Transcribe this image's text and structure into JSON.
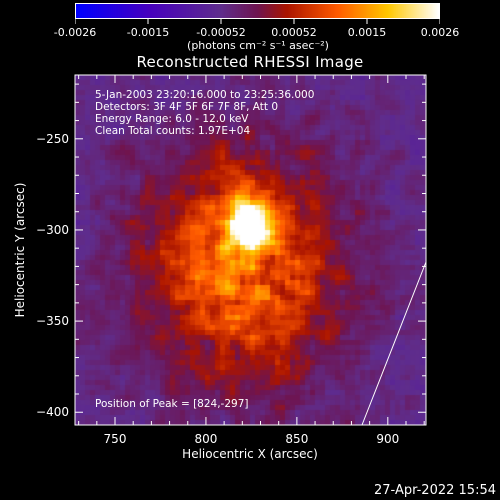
{
  "colorbar": {
    "tick_labels": [
      "-0.0026",
      "-0.0015",
      "-0.00052",
      "0.00052",
      "0.0015",
      "0.0026"
    ],
    "units_label": "(photons cm⁻² s⁻¹ asec⁻²)",
    "colors": [
      "#0000ff",
      "#4b00b0",
      "#5e2a8c",
      "#a81800",
      "#ff6000",
      "#ffd000",
      "#ffffff"
    ]
  },
  "title": "Reconstructed RHESSI Image",
  "info_lines": [
    "5-Jan-2003 23:20:16.000 to 23:25:36.000",
    "Detectors: 3F 4F 5F 6F 7F 8F, Att 0",
    "Energy Range: 6.0 - 12.0 keV",
    "Clean     Total counts: 1.97E+04"
  ],
  "peak_label": "Position of Peak = [824,-297]",
  "axes": {
    "xlabel": "Heliocentric X (arcsec)",
    "ylabel": "Heliocentric Y (arcsec)",
    "xlim": [
      728,
      921
    ],
    "ylim": [
      -407,
      -215
    ],
    "xticks": [
      750,
      800,
      850,
      900
    ],
    "yticks": [
      -250,
      -300,
      -350,
      -400
    ]
  },
  "peak": {
    "x": 824,
    "y": -297
  },
  "timestamp": "27-Apr-2022 15:54"
}
